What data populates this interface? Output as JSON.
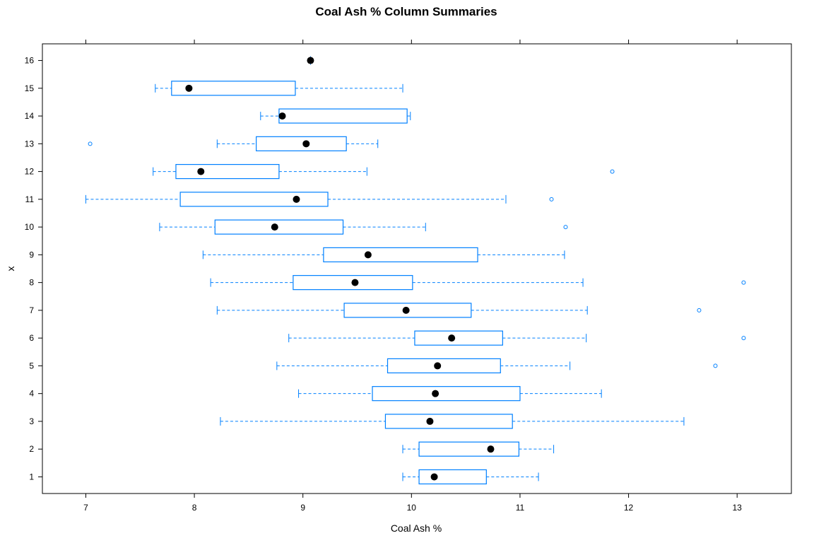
{
  "chart_data": {
    "type": "box",
    "title": "Coal Ash % Column Summaries",
    "xlabel": "Coal Ash %",
    "ylabel": "x",
    "xlim": [
      6.6,
      13.5
    ],
    "x_ticks": [
      "7",
      "8",
      "9",
      "10",
      "11",
      "12",
      "13"
    ],
    "x_tick_values": [
      7,
      8,
      9,
      10,
      11,
      12,
      13
    ],
    "categories": [
      "1",
      "2",
      "3",
      "4",
      "5",
      "6",
      "7",
      "8",
      "9",
      "10",
      "11",
      "12",
      "13",
      "14",
      "15",
      "16"
    ],
    "orientation": "horizontal",
    "grid": false,
    "colors": {
      "box": "#0080ff",
      "median": "#000000",
      "outlier": "#0080ff"
    },
    "boxes": [
      {
        "category": "1",
        "min": 9.92,
        "q1": 10.07,
        "median": 10.21,
        "q3": 10.69,
        "max": 11.17,
        "outliers": []
      },
      {
        "category": "2",
        "min": 9.92,
        "q1": 10.07,
        "median": 10.73,
        "q3": 10.99,
        "max": 11.31,
        "outliers": []
      },
      {
        "category": "3",
        "min": 8.24,
        "q1": 9.76,
        "median": 10.17,
        "q3": 10.93,
        "max": 12.51,
        "outliers": []
      },
      {
        "category": "4",
        "min": 8.96,
        "q1": 9.64,
        "median": 10.22,
        "q3": 11.0,
        "max": 11.75,
        "outliers": []
      },
      {
        "category": "5",
        "min": 8.76,
        "q1": 9.78,
        "median": 10.24,
        "q3": 10.82,
        "max": 11.46,
        "outliers": [
          12.8
        ]
      },
      {
        "category": "6",
        "min": 8.87,
        "q1": 10.03,
        "median": 10.37,
        "q3": 10.84,
        "max": 11.61,
        "outliers": [
          13.06
        ]
      },
      {
        "category": "7",
        "min": 8.21,
        "q1": 9.38,
        "median": 9.95,
        "q3": 10.55,
        "max": 11.62,
        "outliers": [
          12.65
        ]
      },
      {
        "category": "8",
        "min": 8.15,
        "q1": 8.91,
        "median": 9.48,
        "q3": 10.01,
        "max": 11.58,
        "outliers": [
          13.06
        ]
      },
      {
        "category": "9",
        "min": 8.08,
        "q1": 9.19,
        "median": 9.6,
        "q3": 10.61,
        "max": 11.41,
        "outliers": []
      },
      {
        "category": "10",
        "min": 7.68,
        "q1": 8.19,
        "median": 8.74,
        "q3": 9.37,
        "max": 10.13,
        "outliers": [
          11.42
        ]
      },
      {
        "category": "11",
        "min": 7.0,
        "q1": 7.87,
        "median": 8.94,
        "q3": 9.23,
        "max": 10.87,
        "outliers": [
          11.29
        ]
      },
      {
        "category": "12",
        "min": 7.62,
        "q1": 7.83,
        "median": 8.06,
        "q3": 8.78,
        "max": 9.59,
        "outliers": [
          11.85
        ]
      },
      {
        "category": "13",
        "min": 8.21,
        "q1": 8.57,
        "median": 9.03,
        "q3": 9.4,
        "max": 9.69,
        "outliers": [
          7.04
        ]
      },
      {
        "category": "14",
        "min": 8.61,
        "q1": 8.78,
        "median": 8.81,
        "q3": 9.96,
        "max": 9.99,
        "outliers": []
      },
      {
        "category": "15",
        "min": 7.64,
        "q1": 7.79,
        "median": 7.95,
        "q3": 8.93,
        "max": 9.92,
        "outliers": []
      },
      {
        "category": "16",
        "min": 9.07,
        "q1": 9.07,
        "median": 9.07,
        "q3": 9.07,
        "max": 9.07,
        "outliers": []
      }
    ]
  }
}
